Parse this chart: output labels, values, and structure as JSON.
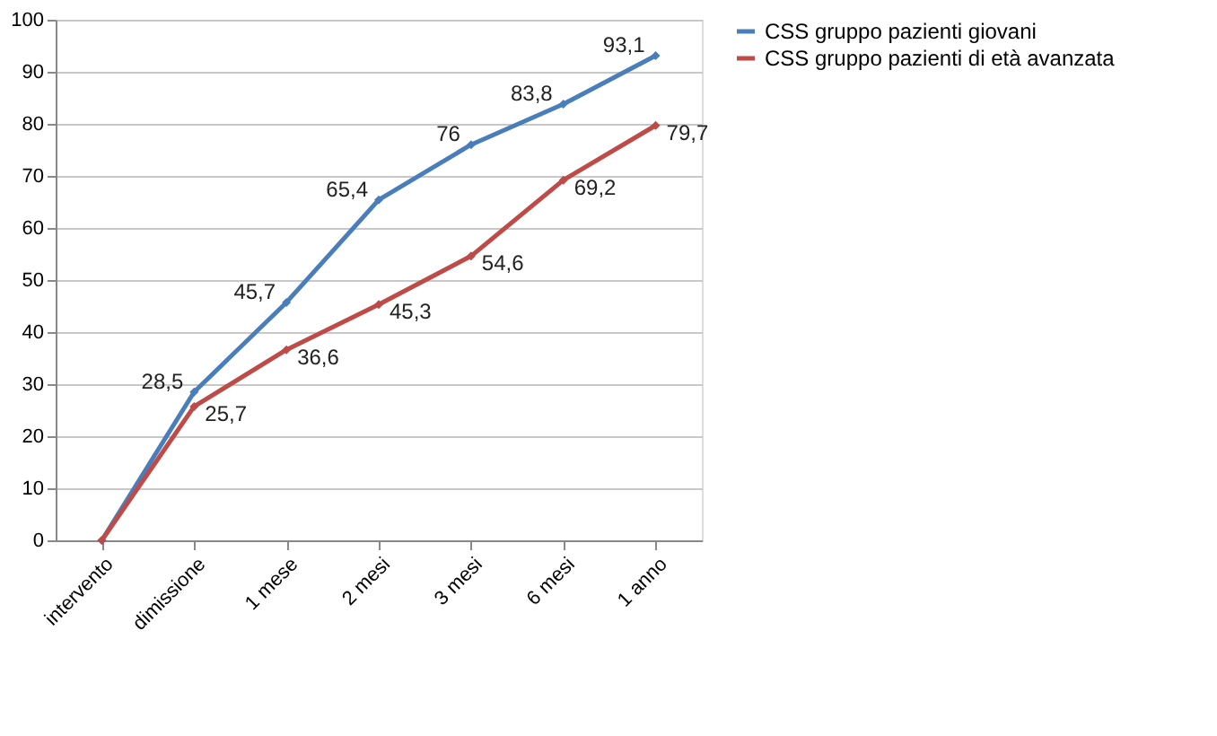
{
  "chart_data": {
    "type": "line",
    "categories": [
      "intervento",
      "dimissione",
      "1 mese",
      "2 mesi",
      "3 mesi",
      "6 mesi",
      "1 anno"
    ],
    "series": [
      {
        "name": "CSS gruppo pazienti giovani",
        "color": "#4a7ebb",
        "values": [
          0,
          28.5,
          45.7,
          65.4,
          76,
          83.8,
          93.1
        ],
        "value_labels": [
          null,
          "28,5",
          "45,7",
          "65,4",
          "76",
          "83,8",
          "93,1"
        ]
      },
      {
        "name": "CSS gruppo pazienti di età avanzata",
        "color": "#be4b48",
        "values": [
          0,
          25.7,
          36.6,
          45.3,
          54.6,
          69.2,
          79.7
        ],
        "value_labels": [
          null,
          "25,7",
          "36,6",
          "45,3",
          "54,6",
          "69,2",
          "79,7"
        ]
      }
    ],
    "ylim": [
      0,
      100
    ],
    "yticks": [
      0,
      10,
      20,
      30,
      40,
      50,
      60,
      70,
      80,
      90,
      100
    ],
    "grid": "y",
    "legend": "right",
    "marker": "diamond",
    "line_style": "solid"
  }
}
